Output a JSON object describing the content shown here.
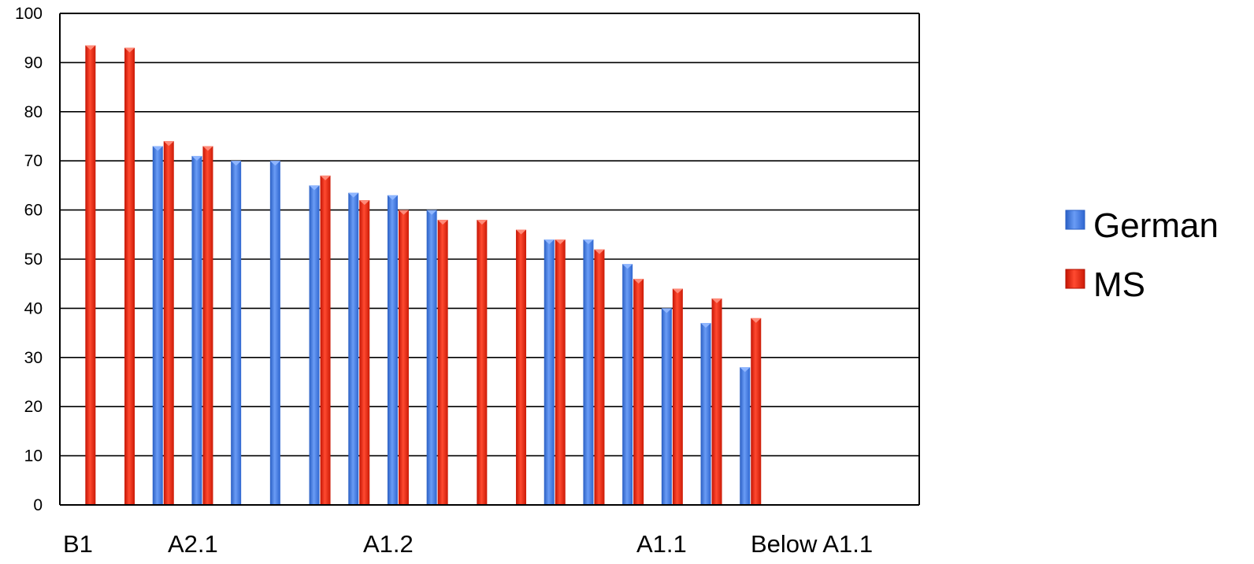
{
  "chart_data": {
    "type": "bar",
    "title": "",
    "xlabel": "",
    "ylabel": "",
    "ylim": [
      0,
      100
    ],
    "yticks": [
      0,
      10,
      20,
      30,
      40,
      50,
      60,
      70,
      80,
      90,
      100
    ],
    "category_labels": [
      "B1",
      "A2.1",
      "A1.2",
      "A1.1",
      "Below A1.1"
    ],
    "grid": true,
    "legend_position": "right",
    "series": [
      {
        "name": "German",
        "color": "#3B78E7",
        "values": [
          null,
          null,
          73,
          71,
          70,
          70,
          65,
          63.5,
          63,
          60,
          null,
          null,
          54,
          54,
          49,
          40,
          37,
          28
        ]
      },
      {
        "name": "MS",
        "color": "#E8210C",
        "values": [
          93.5,
          93,
          74,
          73,
          null,
          null,
          67,
          62,
          60,
          58,
          58,
          56,
          54,
          52,
          46,
          44,
          42,
          38
        ]
      }
    ]
  }
}
